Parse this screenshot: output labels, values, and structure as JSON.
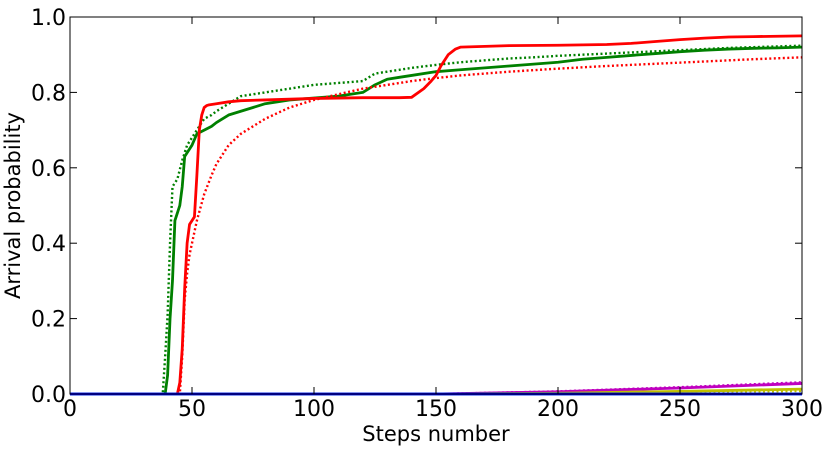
{
  "chart_data": {
    "type": "line",
    "title": "",
    "xlabel": "Steps number",
    "ylabel": "Arrival probability",
    "xlim": [
      0,
      300
    ],
    "ylim": [
      0,
      1.0
    ],
    "grid": false,
    "legend": "none",
    "x_ticks": [
      0,
      50,
      100,
      150,
      200,
      250,
      300
    ],
    "y_ticks": [
      0.0,
      0.2,
      0.4,
      0.6,
      0.8,
      1.0
    ],
    "x_tick_labels": [
      "0",
      "50",
      "100",
      "150",
      "200",
      "250",
      "300"
    ],
    "y_tick_labels": [
      "0.0",
      "0.2",
      "0.4",
      "0.6",
      "0.8",
      "1.0"
    ],
    "series": [
      {
        "color": "#008000",
        "style": "solid",
        "x": [
          0,
          39,
          40,
          41,
          42,
          43,
          44,
          45,
          46,
          47,
          48,
          50,
          52,
          55,
          58,
          60,
          65,
          70,
          75,
          80,
          85,
          90,
          100,
          110,
          120,
          125,
          130,
          135,
          140,
          150,
          160,
          170,
          180,
          190,
          200,
          210,
          220,
          230,
          240,
          250,
          260,
          270,
          280,
          290,
          300
        ],
        "y": [
          0,
          0,
          0.05,
          0.2,
          0.3,
          0.46,
          0.48,
          0.5,
          0.55,
          0.63,
          0.64,
          0.66,
          0.69,
          0.7,
          0.71,
          0.72,
          0.74,
          0.75,
          0.76,
          0.77,
          0.775,
          0.78,
          0.785,
          0.79,
          0.8,
          0.82,
          0.835,
          0.84,
          0.845,
          0.855,
          0.86,
          0.865,
          0.87,
          0.875,
          0.88,
          0.888,
          0.893,
          0.898,
          0.903,
          0.908,
          0.912,
          0.915,
          0.917,
          0.918,
          0.92
        ]
      },
      {
        "color": "#008000",
        "style": "dotted",
        "x": [
          0,
          38,
          39,
          40,
          41,
          42,
          44,
          46,
          47,
          48,
          50,
          52,
          55,
          58,
          60,
          65,
          70,
          80,
          90,
          100,
          110,
          120,
          125,
          130,
          140,
          150,
          160,
          170,
          180,
          190,
          200,
          210,
          220,
          230,
          240,
          250,
          260,
          270,
          280,
          290,
          300
        ],
        "y": [
          0,
          0,
          0.1,
          0.21,
          0.4,
          0.55,
          0.57,
          0.62,
          0.64,
          0.66,
          0.68,
          0.7,
          0.73,
          0.74,
          0.75,
          0.77,
          0.79,
          0.8,
          0.81,
          0.82,
          0.825,
          0.83,
          0.85,
          0.855,
          0.865,
          0.873,
          0.88,
          0.885,
          0.89,
          0.893,
          0.897,
          0.9,
          0.903,
          0.906,
          0.909,
          0.912,
          0.915,
          0.918,
          0.92,
          0.922,
          0.924
        ]
      },
      {
        "color": "#ff0000",
        "style": "solid",
        "x": [
          0,
          44,
          45,
          46,
          47,
          48,
          49,
          50,
          51,
          52,
          53,
          54,
          55,
          56,
          57,
          60,
          65,
          70,
          80,
          90,
          100,
          110,
          120,
          130,
          135,
          140,
          145,
          148,
          150,
          152,
          155,
          158,
          160,
          170,
          180,
          200,
          220,
          230,
          240,
          250,
          260,
          270,
          280,
          290,
          300
        ],
        "y": [
          0,
          0,
          0.03,
          0.12,
          0.28,
          0.4,
          0.45,
          0.46,
          0.47,
          0.58,
          0.7,
          0.74,
          0.76,
          0.765,
          0.767,
          0.77,
          0.775,
          0.778,
          0.78,
          0.782,
          0.784,
          0.785,
          0.786,
          0.786,
          0.786,
          0.787,
          0.81,
          0.83,
          0.845,
          0.87,
          0.9,
          0.915,
          0.92,
          0.922,
          0.924,
          0.925,
          0.927,
          0.93,
          0.935,
          0.94,
          0.944,
          0.947,
          0.948,
          0.949,
          0.95
        ]
      },
      {
        "color": "#ff0000",
        "style": "dotted",
        "x": [
          0,
          45,
          46,
          47,
          48,
          49,
          50,
          52,
          55,
          58,
          60,
          65,
          70,
          75,
          80,
          90,
          100,
          110,
          120,
          130,
          140,
          150,
          160,
          170,
          180,
          200,
          220,
          240,
          260,
          280,
          300
        ],
        "y": [
          0,
          0,
          0.1,
          0.25,
          0.32,
          0.37,
          0.4,
          0.46,
          0.53,
          0.58,
          0.61,
          0.66,
          0.69,
          0.71,
          0.73,
          0.76,
          0.78,
          0.795,
          0.81,
          0.82,
          0.83,
          0.838,
          0.845,
          0.85,
          0.855,
          0.863,
          0.87,
          0.876,
          0.882,
          0.888,
          0.893
        ]
      },
      {
        "color": "#bf00bf",
        "style": "solid",
        "x": [
          0,
          150,
          200,
          250,
          300
        ],
        "y": [
          0,
          0.0,
          0.006,
          0.016,
          0.028
        ]
      },
      {
        "color": "#bf00bf",
        "style": "dotted",
        "x": [
          0,
          150,
          200,
          250,
          300
        ],
        "y": [
          0,
          0.0,
          0.007,
          0.018,
          0.031
        ]
      },
      {
        "color": "#bfbf00",
        "style": "solid",
        "x": [
          0,
          150,
          200,
          250,
          300
        ],
        "y": [
          0,
          0.0,
          0.002,
          0.007,
          0.013
        ]
      },
      {
        "color": "#bfbf00",
        "style": "dotted",
        "x": [
          0,
          150,
          200,
          250,
          300
        ],
        "y": [
          0,
          0.0,
          0.001,
          0.004,
          0.008
        ]
      },
      {
        "color": "#00bfbf",
        "style": "solid",
        "x": [
          0,
          300
        ],
        "y": [
          0,
          0.0
        ]
      },
      {
        "color": "#0000ff",
        "style": "solid",
        "x": [
          0,
          300
        ],
        "y": [
          0,
          0.0
        ]
      }
    ]
  }
}
